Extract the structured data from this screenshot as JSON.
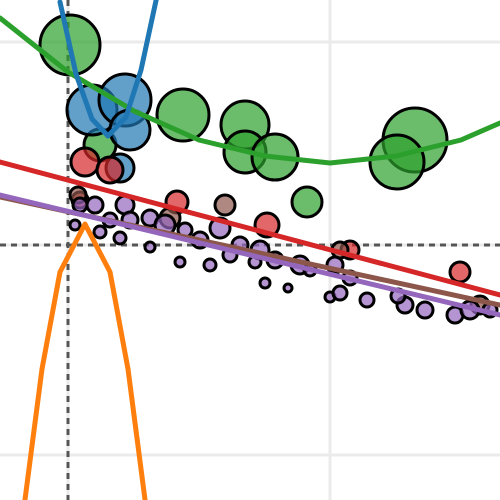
{
  "chart_data": {
    "type": "scatter",
    "xlim": [
      -0.68,
      4.32
    ],
    "ylim": [
      -2.55,
      2.45
    ],
    "xticks": [
      0,
      2.62
    ],
    "yticks": [
      -2.1,
      0,
      2.03
    ],
    "grid": true,
    "zero_lines": true,
    "series": [
      {
        "type": "scatter",
        "color": "#2ca02c",
        "x": [
          0.02,
          1.15,
          1.77,
          1.77,
          2.07,
          3.47,
          3.29,
          2.39,
          0.32
        ],
        "values": [
          2.0,
          1.3,
          1.2,
          0.93,
          0.88,
          1.05,
          0.83,
          0.43,
          1.0
        ],
        "sizes": [
          30,
          26,
          24,
          21,
          23,
          32,
          27,
          15,
          16
        ]
      },
      {
        "type": "scatter",
        "color": "#1f77b4",
        "x": [
          0.24,
          0.57,
          0.62,
          0.52
        ],
        "values": [
          1.35,
          1.45,
          1.15,
          0.77
        ],
        "sizes": [
          25,
          26,
          20,
          14
        ]
      },
      {
        "type": "scatter",
        "color": "#d62728",
        "x": [
          0.17,
          0.42,
          1.09,
          1.99,
          2.82,
          3.92,
          0.12
        ],
        "values": [
          0.83,
          0.75,
          0.43,
          0.2,
          -0.05,
          -0.27,
          0.45
        ],
        "sizes": [
          14,
          13,
          11,
          12,
          9,
          10,
          8
        ]
      },
      {
        "type": "scatter",
        "color": "#8c564b",
        "x": [
          1.57,
          0.1,
          1.02,
          2.72,
          4.12
        ],
        "values": [
          0.4,
          0.5,
          0.27,
          -0.05,
          -0.6
        ],
        "sizes": [
          10,
          8,
          10,
          8,
          9
        ]
      },
      {
        "type": "scatter",
        "color": "#9467bd",
        "x": [
          0.12,
          0.27,
          0.57,
          0.62,
          0.82,
          0.97,
          1.17,
          1.52,
          1.72,
          1.92,
          2.07,
          2.32,
          2.67,
          2.82,
          1.97,
          2.2,
          2.62,
          2.72,
          2.99,
          3.37,
          3.57,
          3.87,
          4.02,
          4.22,
          1.42,
          1.12,
          0.82,
          0.52,
          0.32,
          0.07,
          0.42,
          1.32,
          1.62,
          1.87,
          2.42,
          3.3
        ],
        "values": [
          0.4,
          0.4,
          0.4,
          0.25,
          0.27,
          0.2,
          0.15,
          0.17,
          0.0,
          -0.05,
          -0.15,
          -0.2,
          -0.2,
          -0.33,
          -0.38,
          -0.43,
          -0.52,
          -0.48,
          -0.55,
          -0.6,
          -0.65,
          -0.7,
          -0.65,
          -0.65,
          -0.2,
          -0.17,
          -0.02,
          0.07,
          0.13,
          0.2,
          0.25,
          0.05,
          -0.1,
          -0.17,
          -0.25,
          -0.51
        ],
        "sizes": [
          7,
          8,
          9,
          8,
          8,
          10,
          7,
          10,
          8,
          9,
          8,
          9,
          8,
          7,
          5,
          4,
          5,
          7,
          7,
          8,
          8,
          8,
          9,
          7,
          6,
          5,
          5,
          6,
          6,
          5,
          7,
          8,
          7,
          6,
          6,
          7
        ]
      },
      {
        "type": "line",
        "color": "#2ca02c",
        "x": [
          -0.68,
          0,
          0.66,
          1.31,
          1.97,
          2.62,
          3.28,
          3.93,
          4.32
        ],
        "values": [
          2.27,
          1.73,
          1.34,
          1.05,
          0.89,
          0.82,
          0.89,
          1.05,
          1.22
        ]
      },
      {
        "type": "line",
        "color": "#1f77b4",
        "x": [
          -0.08,
          0.08,
          0.24,
          0.4,
          0.58,
          0.73,
          0.89
        ],
        "values": [
          2.43,
          1.71,
          1.26,
          1.09,
          1.28,
          1.75,
          2.49
        ]
      },
      {
        "type": "line",
        "color": "#8c564b",
        "x": [
          -0.68,
          4.32
        ],
        "values": [
          0.48,
          -0.6
        ]
      },
      {
        "type": "line",
        "color": "#9467bd",
        "x": [
          -0.68,
          4.32
        ],
        "values": [
          0.5,
          -0.7
        ]
      },
      {
        "type": "line",
        "color": "#d62728",
        "x": [
          -0.68,
          4.32
        ],
        "values": [
          0.83,
          -0.5
        ]
      },
      {
        "type": "line",
        "color": "#ff7f0e",
        "x": [
          -0.45,
          -0.26,
          -0.08,
          0.17,
          0.42,
          0.6,
          0.79
        ],
        "values": [
          -2.7,
          -1.24,
          -0.27,
          0.21,
          -0.27,
          -1.24,
          -2.7
        ]
      }
    ]
  }
}
